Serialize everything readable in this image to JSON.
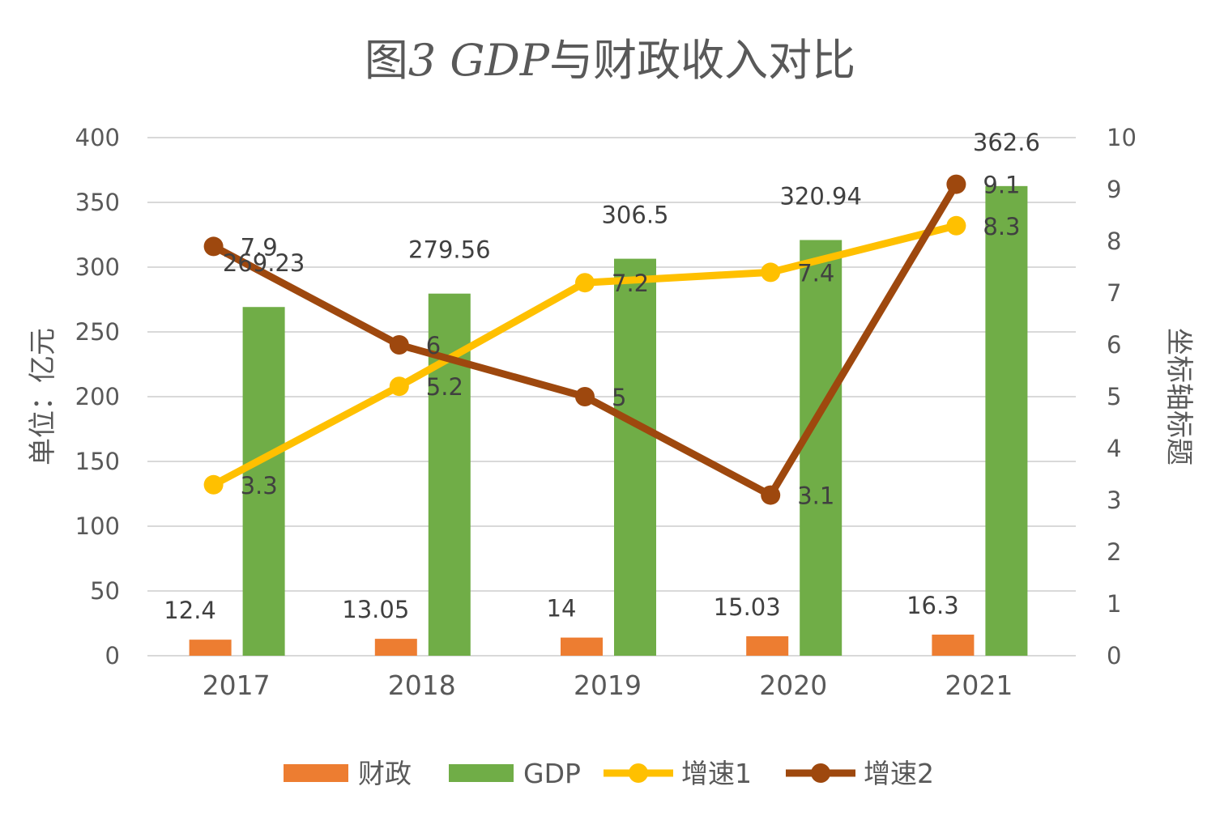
{
  "chart_data": {
    "type": "bar",
    "title_prefix": "图",
    "title_italic": "3 GDP",
    "title_suffix": "与财政收入对比",
    "categories": [
      "2017",
      "2018",
      "2019",
      "2020",
      "2021"
    ],
    "ylabel": "单位：亿元",
    "y2label": "坐标轴标题",
    "ylim": [
      0,
      400
    ],
    "y2lim": [
      0,
      10
    ],
    "yticks": [
      "0",
      "50",
      "100",
      "150",
      "200",
      "250",
      "300",
      "350",
      "400"
    ],
    "y2ticks": [
      "0",
      "1",
      "2",
      "3",
      "4",
      "5",
      "6",
      "7",
      "8",
      "9",
      "10"
    ],
    "grid": true,
    "legend_position": "bottom",
    "series": [
      {
        "name": "财政",
        "kind": "bar",
        "axis": "left",
        "color": "#ED7D31",
        "values": [
          12.4,
          13.05,
          14,
          15.03,
          16.3
        ],
        "labels": [
          "12.4",
          "13.05",
          "14",
          "15.03",
          "16.3"
        ]
      },
      {
        "name": "GDP",
        "kind": "bar",
        "axis": "left",
        "color": "#70AD47",
        "values": [
          269.23,
          279.56,
          306.5,
          320.94,
          362.6
        ],
        "labels": [
          "269.23",
          "279.56",
          "306.5",
          "320.94",
          "362.6"
        ]
      },
      {
        "name": "增速1",
        "kind": "line",
        "axis": "right",
        "color": "#FFC000",
        "values": [
          3.3,
          5.2,
          7.2,
          7.4,
          8.3
        ],
        "labels": [
          "3.3",
          "5.2",
          "7.2",
          "7.4",
          "8.3"
        ]
      },
      {
        "name": "增速2",
        "kind": "line",
        "axis": "right",
        "color": "#9E480E",
        "values": [
          7.9,
          6,
          5,
          3.1,
          9.1
        ],
        "labels": [
          "7.9",
          "6",
          "5",
          "3.1",
          "9.1"
        ]
      }
    ]
  }
}
